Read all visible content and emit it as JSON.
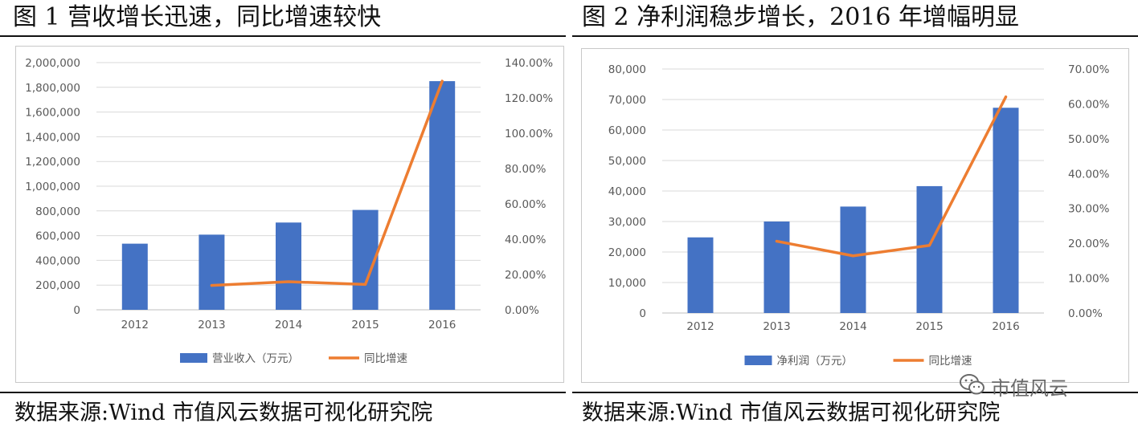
{
  "figures": [
    {
      "title": "图 1  营收增长迅速，同比增速较快",
      "source": "数据来源:Wind   市值风云数据可视化研究院",
      "chart_data": {
        "type": "bar+line",
        "categories": [
          "2012",
          "2013",
          "2014",
          "2015",
          "2016"
        ],
        "series": [
          {
            "name": "营业收入（万元）",
            "type": "bar",
            "axis": "left",
            "color": "#4472C4",
            "values": [
              535000,
              608000,
              706000,
              808000,
              1850000
            ]
          },
          {
            "name": "同比增速",
            "type": "line",
            "axis": "right",
            "color": "#ED7D31",
            "values": [
              null,
              13.8,
              15.9,
              14.4,
              129.5
            ]
          }
        ],
        "left_axis": {
          "min": 0,
          "max": 2000000,
          "step": 200000,
          "tick_labels": [
            "0",
            "200,000",
            "400,000",
            "600,000",
            "800,000",
            "1,000,000",
            "1,200,000",
            "1,400,000",
            "1,600,000",
            "1,800,000",
            "2,000,000"
          ]
        },
        "right_axis": {
          "min": 0,
          "max": 140,
          "step": 20,
          "tick_labels": [
            "0.00%",
            "20.00%",
            "40.00%",
            "60.00%",
            "80.00%",
            "100.00%",
            "120.00%",
            "140.00%"
          ]
        },
        "grid": true,
        "legend": "bottom"
      }
    },
    {
      "title": "图 2  净利润稳步增长，2016 年增幅明显",
      "source": "数据来源:Wind   市值风云数据可视化研究院",
      "chart_data": {
        "type": "bar+line",
        "categories": [
          "2012",
          "2013",
          "2014",
          "2015",
          "2016"
        ],
        "series": [
          {
            "name": "净利润（万元）",
            "type": "bar",
            "axis": "left",
            "color": "#4472C4",
            "values": [
              24800,
              30000,
              34900,
              41600,
              67300
            ]
          },
          {
            "name": "同比增速",
            "type": "line",
            "axis": "right",
            "color": "#ED7D31",
            "values": [
              null,
              20.6,
              16.4,
              19.4,
              62.0
            ]
          }
        ],
        "left_axis": {
          "min": 0,
          "max": 80000,
          "step": 10000,
          "tick_labels": [
            "0",
            "10,000",
            "20,000",
            "30,000",
            "40,000",
            "50,000",
            "60,000",
            "70,000",
            "80,000"
          ]
        },
        "right_axis": {
          "min": 0,
          "max": 70,
          "step": 10,
          "tick_labels": [
            "0.00%",
            "10.00%",
            "20.00%",
            "30.00%",
            "40.00%",
            "50.00%",
            "60.00%",
            "70.00%"
          ]
        },
        "grid": true,
        "legend": "bottom"
      }
    }
  ],
  "watermark": {
    "text": "市值风云",
    "icon": "wechat-icon",
    "color": "#6a6a6a"
  }
}
